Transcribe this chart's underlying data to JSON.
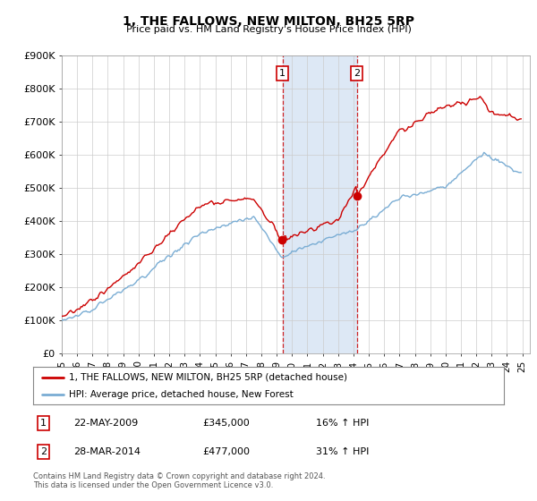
{
  "title": "1, THE FALLOWS, NEW MILTON, BH25 5RP",
  "subtitle": "Price paid vs. HM Land Registry's House Price Index (HPI)",
  "ylim": [
    0,
    900000
  ],
  "sale1_x": 2009.37,
  "sale1_price": 345000,
  "sale1_date": "22-MAY-2009",
  "sale1_label": "16% ↑ HPI",
  "sale2_x": 2014.21,
  "sale2_price": 477000,
  "sale2_date": "28-MAR-2014",
  "sale2_label": "31% ↑ HPI",
  "legend_line1": "1, THE FALLOWS, NEW MILTON, BH25 5RP (detached house)",
  "legend_line2": "HPI: Average price, detached house, New Forest",
  "footnote": "Contains HM Land Registry data © Crown copyright and database right 2024.\nThis data is licensed under the Open Government Licence v3.0.",
  "hpi_color": "#7aadd4",
  "price_color": "#cc0000",
  "shading_color": "#dde8f5",
  "grid_color": "#cccccc",
  "bg_color": "#ffffff"
}
